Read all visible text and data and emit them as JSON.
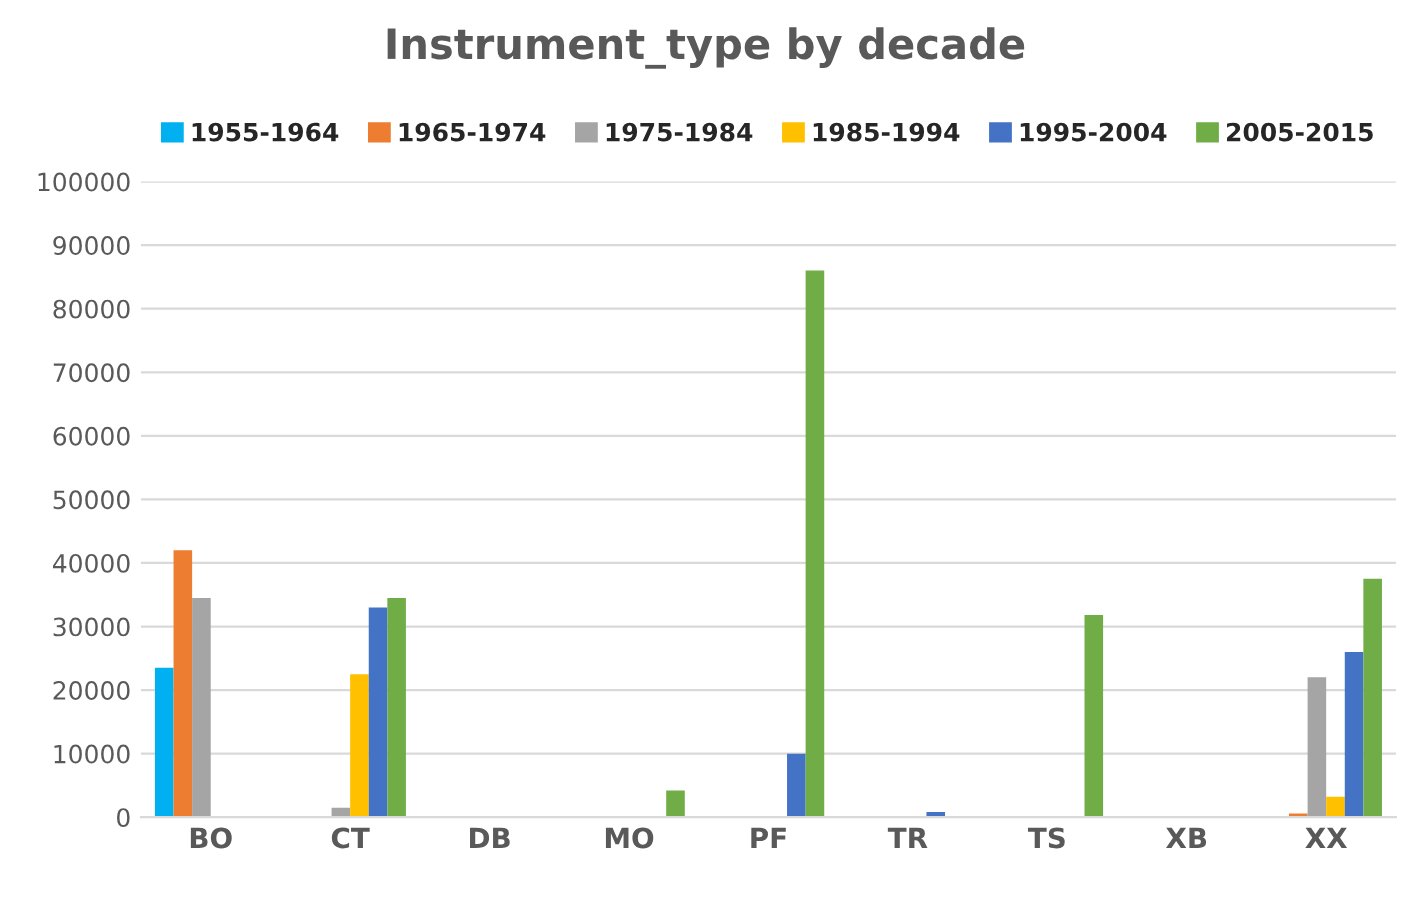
{
  "chart_data": {
    "type": "bar",
    "title": "Instrument_type by decade",
    "categories": [
      "BO",
      "CT",
      "DB",
      "MO",
      "PF",
      "TR",
      "TS",
      "XB",
      "XX"
    ],
    "series": [
      {
        "name": "1955-1964",
        "color": "#00b0f0",
        "values": [
          23500,
          null,
          null,
          null,
          null,
          null,
          null,
          null,
          null
        ]
      },
      {
        "name": "1965-1974",
        "color": "#ed7d31",
        "values": [
          42000,
          null,
          null,
          null,
          null,
          null,
          null,
          null,
          600
        ]
      },
      {
        "name": "1975-1984",
        "color": "#a5a5a5",
        "values": [
          34500,
          1500,
          null,
          null,
          null,
          null,
          null,
          null,
          22000
        ]
      },
      {
        "name": "1985-1994",
        "color": "#ffc000",
        "values": [
          null,
          22500,
          null,
          null,
          null,
          null,
          null,
          null,
          3200
        ]
      },
      {
        "name": "1995-2004",
        "color": "#4472c4",
        "values": [
          null,
          33000,
          null,
          null,
          10000,
          800,
          null,
          null,
          26000
        ]
      },
      {
        "name": "2005-2015",
        "color": "#70ad47",
        "values": [
          null,
          34500,
          null,
          4200,
          86000,
          null,
          31800,
          null,
          37500
        ]
      }
    ],
    "ylim": [
      0,
      100000
    ],
    "yticks": [
      0,
      10000,
      20000,
      30000,
      40000,
      50000,
      60000,
      70000,
      80000,
      90000,
      100000
    ],
    "grid": "y",
    "legend": "top"
  }
}
